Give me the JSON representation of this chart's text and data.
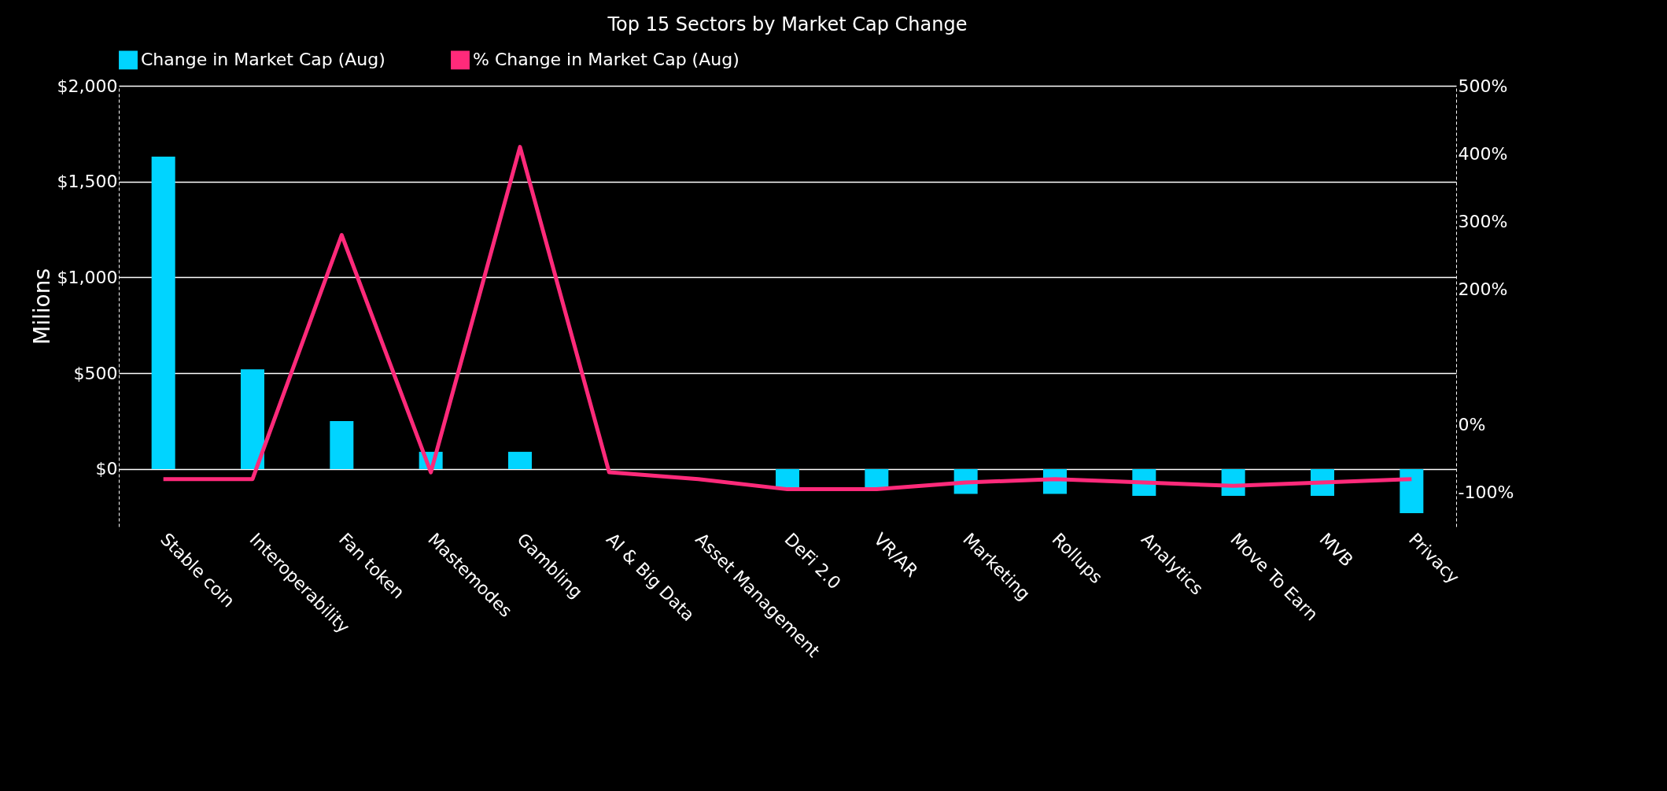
{
  "chart_data": {
    "type": "bar",
    "title": "Top 15 Sectors by Market Cap Change",
    "categories": [
      "Stable  coin",
      "Interoperability",
      "Fan token",
      "Mastemodes",
      "Gambling",
      "AI & Big Data",
      "Asset  Management",
      "DeFi 2.0",
      "VR/AR",
      "Marketing",
      "Rollups",
      "Analytics",
      "Move To Earn",
      "MVB",
      "Privacy"
    ],
    "series": [
      {
        "name": "Change in Market Cap (Aug)",
        "color": "#00d4ff",
        "values": [
          1630,
          520,
          250,
          90,
          90,
          0,
          0,
          -100,
          -100,
          -130,
          -130,
          -140,
          -140,
          -140,
          -230
        ]
      },
      {
        "name": "% Change in Market Cap (Aug)",
        "color": "#ff2a7a",
        "type": "line",
        "axis": "y2",
        "values": [
          -80,
          -80,
          280,
          -70,
          410,
          -70,
          -80,
          -95,
          -95,
          -85,
          -80,
          -85,
          -90,
          -85,
          -80
        ]
      }
    ],
    "ylabel": "Milions",
    "ylim": [
      -300,
      2000
    ],
    "yticks": [
      {
        "value": 0,
        "label": "$0"
      },
      {
        "value": 500,
        "label": "$500"
      },
      {
        "value": 1000,
        "label": "$1,000"
      },
      {
        "value": 1500,
        "label": "$1,500"
      },
      {
        "value": 2000,
        "label": "$2,000"
      }
    ],
    "y2lim": [
      -150,
      500
    ],
    "y2ticks": [
      {
        "value": -100,
        "label": "-100%"
      },
      {
        "value": 0,
        "label": "0%"
      },
      {
        "value": 200,
        "label": "200%"
      },
      {
        "value": 300,
        "label": "300%"
      },
      {
        "value": 400,
        "label": "400%"
      },
      {
        "value": 500,
        "label": "500%"
      }
    ],
    "grid": "y",
    "legend": "top"
  }
}
